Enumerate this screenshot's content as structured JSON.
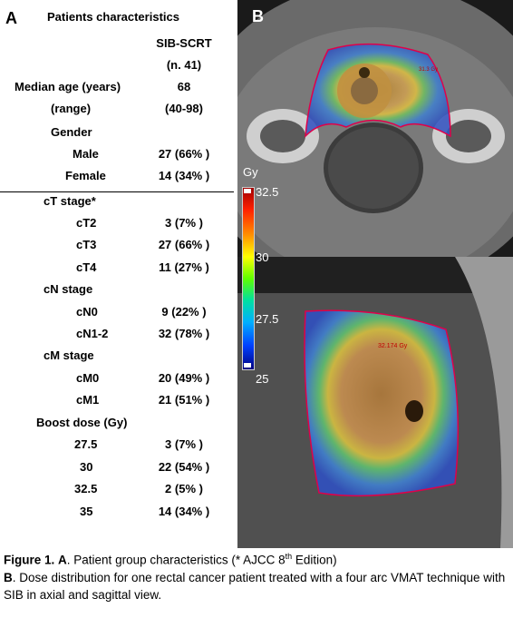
{
  "panel_a": {
    "letter": "A",
    "title": "Patients characteristics",
    "group_header": "SIB-SCRT",
    "group_n": "(n. 41)",
    "rows": [
      {
        "label": "Median age  (years)",
        "value": "68"
      },
      {
        "label": "(range)",
        "value": "(40-98)"
      },
      {
        "label": "Gender",
        "value": ""
      },
      {
        "label": "Male",
        "value": "27 (66% )"
      },
      {
        "label": "Female",
        "value": "14 (34% )"
      },
      {
        "label": "cT stage*",
        "value": ""
      },
      {
        "label": "cT2",
        "value": "3 (7% )"
      },
      {
        "label": "cT3",
        "value": "27 (66% )"
      },
      {
        "label": "cT4",
        "value": "11 (27% )"
      },
      {
        "label": "cN stage",
        "value": ""
      },
      {
        "label": "cN0",
        "value": "9 (22% )"
      },
      {
        "label": "cN1-2",
        "value": "32 (78% )"
      },
      {
        "label": "cM stage",
        "value": ""
      },
      {
        "label": "cM0",
        "value": "20 (49% )"
      },
      {
        "label": "cM1",
        "value": "21 (51% )"
      },
      {
        "label": "Boost dose (Gy)",
        "value": ""
      },
      {
        "label": "27.5",
        "value": "3 (7% )"
      },
      {
        "label": "30",
        "value": "22 (54% )"
      },
      {
        "label": "32.5",
        "value": "2 (5% )"
      },
      {
        "label": "35",
        "value": "14 (34% )"
      }
    ]
  },
  "panel_b": {
    "letter": "B",
    "colorbar_unit": "Gy",
    "colorbar_ticks": [
      "32.5",
      "30",
      "27.5",
      "25"
    ],
    "axial_label": "31.3 Gy",
    "sagittal_label": "32.174 Gy"
  },
  "caption": {
    "fig_label": "Figure 1.",
    "a_label": "A",
    "a_text": ". Patient group characteristics (* AJCC 8",
    "a_sup": "th",
    "a_tail": " Edition)",
    "b_label": "B",
    "b_text": ". Dose distribution for one rectal cancer patient treated with a four arc VMAT technique with SIB in axial and sagittal view."
  }
}
